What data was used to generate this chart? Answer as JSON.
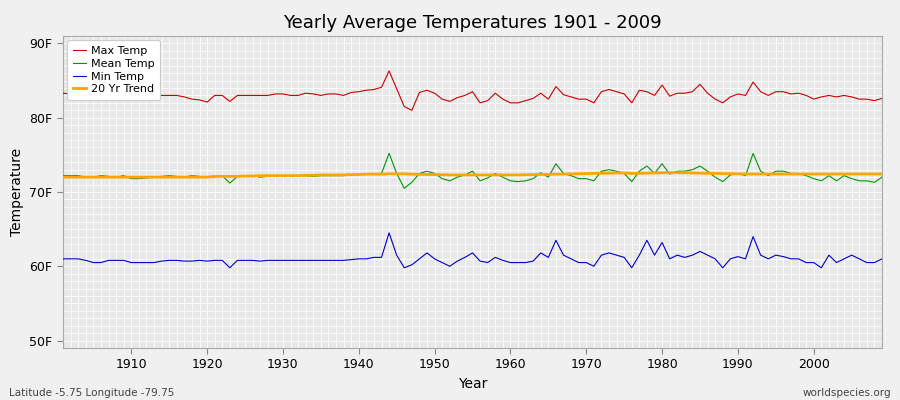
{
  "title": "Yearly Average Temperatures 1901 - 2009",
  "xlabel": "Year",
  "ylabel": "Temperature",
  "bottom_left_label": "Latitude -5.75 Longitude -79.75",
  "bottom_right_label": "worldspecies.org",
  "year_start": 1901,
  "year_end": 2009,
  "yticks": [
    50,
    60,
    70,
    80,
    90
  ],
  "ytick_labels": [
    "50F",
    "60F",
    "70F",
    "80F",
    "90F"
  ],
  "xticks": [
    1910,
    1920,
    1930,
    1940,
    1950,
    1960,
    1970,
    1980,
    1990,
    2000
  ],
  "ylim": [
    49,
    91
  ],
  "xlim": [
    1901,
    2009
  ],
  "fig_bg_color": "#f0f0f0",
  "plot_bg_color": "#e8e8e8",
  "grid_color": "#ffffff",
  "max_temp_color": "#cc0000",
  "mean_temp_color": "#009900",
  "min_temp_color": "#0000cc",
  "trend_color": "#ffa500",
  "legend_labels": [
    "Max Temp",
    "Mean Temp",
    "Min Temp",
    "20 Yr Trend"
  ],
  "max_temp": [
    83.3,
    83.2,
    83.1,
    83.3,
    82.6,
    83.0,
    83.0,
    83.0,
    82.8,
    82.9,
    83.1,
    83.2,
    82.9,
    83.0,
    83.0,
    83.0,
    82.8,
    82.5,
    82.4,
    82.1,
    83.0,
    83.0,
    82.2,
    83.0,
    83.0,
    83.0,
    83.0,
    83.0,
    83.2,
    83.2,
    83.0,
    83.0,
    83.3,
    83.2,
    83.0,
    83.2,
    83.2,
    83.0,
    83.4,
    83.5,
    83.7,
    83.8,
    84.1,
    86.3,
    83.9,
    81.5,
    81.0,
    83.4,
    83.7,
    83.3,
    82.5,
    82.2,
    82.7,
    83.0,
    83.5,
    82.0,
    82.3,
    83.3,
    82.5,
    82.0,
    82.0,
    82.3,
    82.6,
    83.3,
    82.5,
    84.2,
    83.1,
    82.8,
    82.5,
    82.5,
    82.0,
    83.5,
    83.8,
    83.5,
    83.2,
    82.0,
    83.7,
    83.5,
    83.0,
    84.4,
    82.9,
    83.3,
    83.3,
    83.5,
    84.5,
    83.3,
    82.5,
    82.0,
    82.8,
    83.2,
    83.0,
    84.8,
    83.5,
    83.0,
    83.5,
    83.5,
    83.2,
    83.3,
    83.0,
    82.5,
    82.8,
    83.0,
    82.8,
    83.0,
    82.8,
    82.5,
    82.5,
    82.3,
    82.6
  ],
  "mean_temp": [
    72.2,
    72.2,
    72.2,
    72.0,
    72.0,
    72.2,
    72.1,
    72.0,
    72.2,
    71.8,
    71.8,
    71.9,
    72.0,
    72.1,
    72.2,
    72.1,
    72.0,
    72.2,
    72.1,
    72.0,
    72.0,
    72.2,
    71.2,
    72.1,
    72.2,
    72.2,
    72.0,
    72.1,
    72.2,
    72.2,
    72.2,
    72.2,
    72.2,
    72.1,
    72.2,
    72.2,
    72.2,
    72.2,
    72.3,
    72.4,
    72.4,
    72.4,
    72.5,
    75.2,
    72.5,
    70.5,
    71.3,
    72.5,
    72.8,
    72.5,
    71.8,
    71.5,
    72.0,
    72.3,
    72.8,
    71.5,
    71.9,
    72.5,
    72.0,
    71.5,
    71.4,
    71.5,
    71.8,
    72.6,
    72.0,
    73.8,
    72.5,
    72.2,
    71.8,
    71.8,
    71.5,
    72.8,
    73.0,
    72.8,
    72.5,
    71.4,
    72.8,
    73.5,
    72.5,
    73.8,
    72.4,
    72.8,
    72.8,
    73.0,
    73.5,
    72.8,
    72.0,
    71.4,
    72.3,
    72.5,
    72.2,
    75.2,
    72.8,
    72.2,
    72.8,
    72.8,
    72.5,
    72.5,
    72.2,
    71.8,
    71.5,
    72.2,
    71.5,
    72.2,
    71.8,
    71.5,
    71.5,
    71.3,
    72.0
  ],
  "min_temp": [
    61.0,
    61.0,
    61.0,
    60.8,
    60.5,
    60.5,
    60.8,
    60.8,
    60.8,
    60.5,
    60.5,
    60.5,
    60.5,
    60.7,
    60.8,
    60.8,
    60.7,
    60.7,
    60.8,
    60.7,
    60.8,
    60.8,
    59.8,
    60.8,
    60.8,
    60.8,
    60.7,
    60.8,
    60.8,
    60.8,
    60.8,
    60.8,
    60.8,
    60.8,
    60.8,
    60.8,
    60.8,
    60.8,
    60.9,
    61.0,
    61.0,
    61.2,
    61.2,
    64.5,
    61.5,
    59.8,
    60.2,
    61.0,
    61.8,
    61.0,
    60.5,
    60.0,
    60.7,
    61.2,
    61.8,
    60.7,
    60.5,
    61.2,
    60.8,
    60.5,
    60.5,
    60.5,
    60.7,
    61.8,
    61.2,
    63.5,
    61.5,
    61.0,
    60.5,
    60.5,
    60.0,
    61.5,
    61.8,
    61.5,
    61.2,
    59.8,
    61.5,
    63.5,
    61.5,
    63.2,
    61.0,
    61.5,
    61.2,
    61.5,
    62.0,
    61.5,
    61.0,
    59.8,
    61.0,
    61.3,
    61.0,
    64.0,
    61.5,
    61.0,
    61.5,
    61.3,
    61.0,
    61.0,
    60.5,
    60.5,
    59.8,
    61.5,
    60.5,
    61.0,
    61.5,
    61.0,
    60.5,
    60.5,
    61.0
  ],
  "trend": [
    72.0,
    72.0,
    72.0,
    72.0,
    72.0,
    72.0,
    72.0,
    72.0,
    72.0,
    72.0,
    72.0,
    72.0,
    72.0,
    72.0,
    72.0,
    72.0,
    72.0,
    72.0,
    72.0,
    72.0,
    72.1,
    72.1,
    72.1,
    72.1,
    72.15,
    72.15,
    72.2,
    72.2,
    72.2,
    72.2,
    72.2,
    72.2,
    72.25,
    72.25,
    72.3,
    72.3,
    72.3,
    72.3,
    72.35,
    72.35,
    72.4,
    72.4,
    72.4,
    72.45,
    72.45,
    72.45,
    72.4,
    72.38,
    72.36,
    72.34,
    72.32,
    72.3,
    72.3,
    72.3,
    72.3,
    72.3,
    72.3,
    72.3,
    72.3,
    72.3,
    72.3,
    72.32,
    72.34,
    72.36,
    72.38,
    72.4,
    72.42,
    72.44,
    72.46,
    72.48,
    72.5,
    72.52,
    72.54,
    72.56,
    72.58,
    72.5,
    72.52,
    72.54,
    72.56,
    72.58,
    72.6,
    72.6,
    72.58,
    72.56,
    72.54,
    72.52,
    72.5,
    72.48,
    72.46,
    72.44,
    72.42,
    72.42,
    72.42,
    72.42,
    72.42,
    72.42,
    72.42,
    72.42,
    72.42,
    72.42,
    72.42,
    72.42,
    72.42,
    72.42,
    72.42,
    72.42,
    72.42,
    72.42,
    72.42
  ]
}
